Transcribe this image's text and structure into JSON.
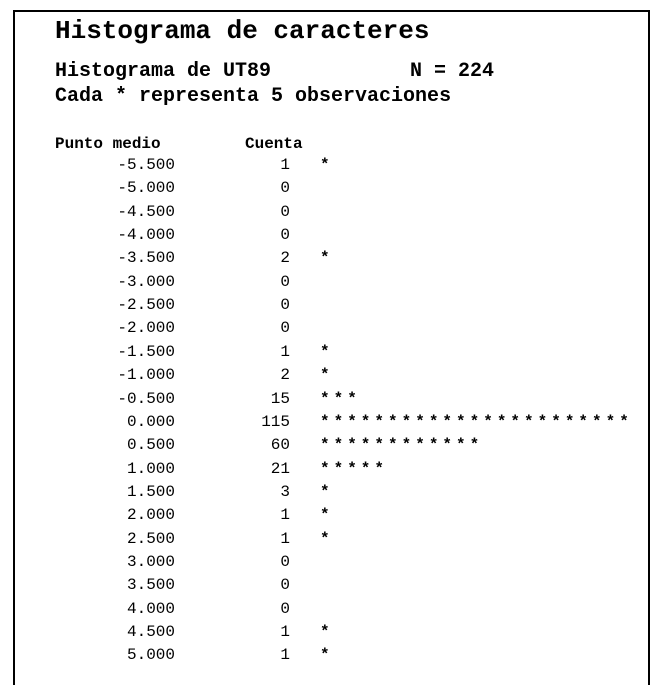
{
  "header": {
    "title": "Histograma de caracteres",
    "subtitle": "Histograma de UT89",
    "sample_size": "N = 224",
    "note": "Cada * representa 5 observaciones"
  },
  "table": {
    "columns": [
      "Punto medio",
      "Cuenta"
    ],
    "rows": [
      [
        "-5.500",
        1,
        "*"
      ],
      [
        "-5.000",
        0,
        ""
      ],
      [
        "-4.500",
        0,
        ""
      ],
      [
        "-4.000",
        0,
        ""
      ],
      [
        "-3.500",
        2,
        "*"
      ],
      [
        "-3.000",
        0,
        ""
      ],
      [
        "-2.500",
        0,
        ""
      ],
      [
        "-2.000",
        0,
        ""
      ],
      [
        "-1.500",
        1,
        "*"
      ],
      [
        "-1.000",
        2,
        "*"
      ],
      [
        "-0.500",
        15,
        "***"
      ],
      [
        "0.000",
        115,
        "***********************"
      ],
      [
        "0.500",
        60,
        "************"
      ],
      [
        "1.000",
        21,
        "*****"
      ],
      [
        "1.500",
        3,
        "*"
      ],
      [
        "2.000",
        1,
        "*"
      ],
      [
        "2.500",
        1,
        "*"
      ],
      [
        "3.000",
        0,
        ""
      ],
      [
        "3.500",
        0,
        ""
      ],
      [
        "4.000",
        0,
        ""
      ],
      [
        "4.500",
        1,
        "*"
      ],
      [
        "5.000",
        1,
        "*"
      ]
    ]
  }
}
